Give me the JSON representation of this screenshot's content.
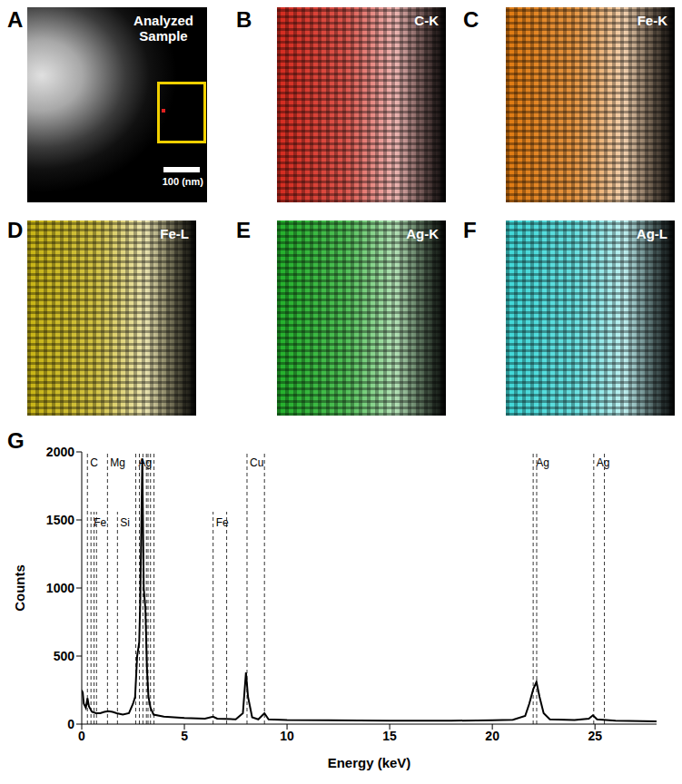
{
  "panels": [
    {
      "letter": "A",
      "label": "Analyzed Sample",
      "scale_bar": "100 (nm)"
    },
    {
      "letter": "B",
      "label": "C-K",
      "color": "#d42a1e"
    },
    {
      "letter": "C",
      "label": "Fe-K",
      "color": "#e07a10"
    },
    {
      "letter": "D",
      "label": "Fe-L",
      "color": "#c8b414"
    },
    {
      "letter": "E",
      "label": "Ag-K",
      "color": "#22b02a"
    },
    {
      "letter": "F",
      "label": "Ag-L",
      "color": "#3fd8d8"
    }
  ],
  "chart_panel": "G",
  "chart_data": {
    "type": "line",
    "xlabel": "Energy (keV)",
    "ylabel": "Counts",
    "x": [
      0,
      0.05,
      0.1,
      0.2,
      0.28,
      0.35,
      0.5,
      0.7,
      0.9,
      1.1,
      1.3,
      1.5,
      1.7,
      2.0,
      2.3,
      2.5,
      2.6,
      2.7,
      2.8,
      2.85,
      2.95,
      3.02,
      3.1,
      3.18,
      3.25,
      3.35,
      3.5,
      4.0,
      5.0,
      6.0,
      6.4,
      6.6,
      7.0,
      7.5,
      7.85,
      8.0,
      8.1,
      8.3,
      8.6,
      8.9,
      9.1,
      10,
      12,
      15,
      18,
      20,
      21,
      21.6,
      21.8,
      22.0,
      22.15,
      22.3,
      22.5,
      22.8,
      24,
      24.7,
      24.9,
      25.1,
      26,
      28
    ],
    "values": [
      250,
      230,
      150,
      120,
      190,
      130,
      90,
      80,
      80,
      90,
      95,
      90,
      80,
      70,
      80,
      150,
      200,
      500,
      600,
      900,
      1950,
      1000,
      850,
      400,
      200,
      120,
      70,
      55,
      45,
      40,
      55,
      40,
      38,
      35,
      80,
      380,
      200,
      50,
      35,
      80,
      35,
      30,
      28,
      25,
      25,
      28,
      32,
      60,
      150,
      260,
      310,
      200,
      80,
      35,
      30,
      40,
      65,
      35,
      25,
      20
    ],
    "color": "#000000",
    "line_style": "solid",
    "marker": "none",
    "xlim": [
      0,
      28
    ],
    "xticks": [
      0,
      5,
      10,
      15,
      20,
      25
    ],
    "ylim": [
      0,
      2000
    ],
    "yticks": [
      0,
      500,
      1000,
      1500,
      2000
    ],
    "reference_lines": [
      {
        "label": "C",
        "energies": [
          0.277
        ]
      },
      {
        "label": "Fe",
        "energies": [
          0.45,
          0.6,
          0.72
        ]
      },
      {
        "label": "Mg",
        "energies": [
          1.254
        ]
      },
      {
        "label": "Si",
        "energies": [
          1.74
        ]
      },
      {
        "label": "Ag",
        "energies": [
          2.63,
          2.81,
          2.98,
          3.15,
          3.23,
          3.35,
          3.52
        ]
      },
      {
        "label": "Fe",
        "energies": [
          6.4,
          7.06
        ]
      },
      {
        "label": "Cu",
        "energies": [
          8.05,
          8.9
        ]
      },
      {
        "label": "Ag",
        "energies": [
          21.99,
          22.16
        ]
      },
      {
        "label": "Ag",
        "energies": [
          24.94,
          25.46
        ]
      }
    ]
  }
}
